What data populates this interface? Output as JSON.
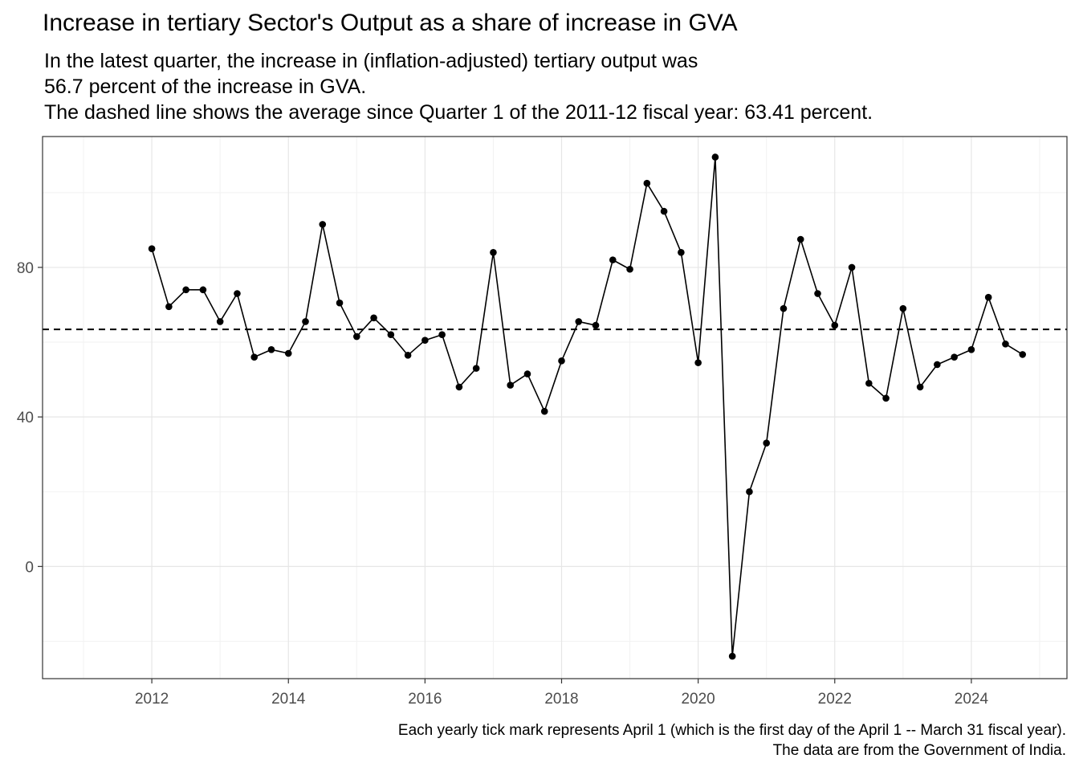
{
  "chart_data": {
    "type": "line",
    "title": "Increase in tertiary Sector's Output as a share of increase in GVA",
    "subtitle": "In the latest quarter, the increase in (inflation-adjusted) tertiary output was\n 56.7 percent of the increase in GVA.\nThe dashed line shows the average since Quarter 1 of the 2011-12 fiscal year: 63.41 percent.",
    "caption": "Each yearly tick mark represents April 1 (which is the first day of the April 1 -- March 31 fiscal year).\nThe data are from the Government of India.",
    "xlabel": "",
    "ylabel": "",
    "xlim": [
      2010.4,
      2025.4
    ],
    "ylim": [
      -30,
      115
    ],
    "x_ticks": [
      2012,
      2014,
      2016,
      2018,
      2020,
      2022,
      2024
    ],
    "y_ticks": [
      0,
      40,
      80
    ],
    "grid": true,
    "reference_line": {
      "value": 63.41,
      "style": "dashed"
    },
    "series": [
      {
        "points": [
          {
            "x": 2012.0,
            "y": 85.0
          },
          {
            "x": 2012.25,
            "y": 69.5
          },
          {
            "x": 2012.5,
            "y": 74.0
          },
          {
            "x": 2012.75,
            "y": 74.0
          },
          {
            "x": 2013.0,
            "y": 65.5
          },
          {
            "x": 2013.25,
            "y": 73.0
          },
          {
            "x": 2013.5,
            "y": 56.0
          },
          {
            "x": 2013.75,
            "y": 58.0
          },
          {
            "x": 2014.0,
            "y": 57.0
          },
          {
            "x": 2014.25,
            "y": 65.5
          },
          {
            "x": 2014.5,
            "y": 91.5
          },
          {
            "x": 2014.75,
            "y": 70.5
          },
          {
            "x": 2015.0,
            "y": 61.5
          },
          {
            "x": 2015.25,
            "y": 66.5
          },
          {
            "x": 2015.5,
            "y": 62.0
          },
          {
            "x": 2015.75,
            "y": 56.5
          },
          {
            "x": 2016.0,
            "y": 60.5
          },
          {
            "x": 2016.25,
            "y": 62.0
          },
          {
            "x": 2016.5,
            "y": 48.0
          },
          {
            "x": 2016.75,
            "y": 53.0
          },
          {
            "x": 2017.0,
            "y": 84.0
          },
          {
            "x": 2017.25,
            "y": 48.5
          },
          {
            "x": 2017.5,
            "y": 51.5
          },
          {
            "x": 2017.75,
            "y": 41.5
          },
          {
            "x": 2018.0,
            "y": 55.0
          },
          {
            "x": 2018.25,
            "y": 65.5
          },
          {
            "x": 2018.5,
            "y": 64.5
          },
          {
            "x": 2018.75,
            "y": 82.0
          },
          {
            "x": 2019.0,
            "y": 79.5
          },
          {
            "x": 2019.25,
            "y": 102.5
          },
          {
            "x": 2019.5,
            "y": 95.0
          },
          {
            "x": 2019.75,
            "y": 84.0
          },
          {
            "x": 2020.0,
            "y": 54.5
          },
          {
            "x": 2020.25,
            "y": 109.5
          },
          {
            "x": 2020.5,
            "y": -24.0
          },
          {
            "x": 2020.75,
            "y": 20.0
          },
          {
            "x": 2021.0,
            "y": 33.0
          },
          {
            "x": 2021.25,
            "y": 69.0
          },
          {
            "x": 2021.5,
            "y": 87.5
          },
          {
            "x": 2021.75,
            "y": 73.0
          },
          {
            "x": 2022.0,
            "y": 64.5
          },
          {
            "x": 2022.25,
            "y": 80.0
          },
          {
            "x": 2022.5,
            "y": 49.0
          },
          {
            "x": 2022.75,
            "y": 45.0
          },
          {
            "x": 2023.0,
            "y": 69.0
          },
          {
            "x": 2023.25,
            "y": 48.0
          },
          {
            "x": 2023.5,
            "y": 54.0
          },
          {
            "x": 2023.75,
            "y": 56.0
          },
          {
            "x": 2024.0,
            "y": 58.0
          },
          {
            "x": 2024.25,
            "y": 72.0
          },
          {
            "x": 2024.5,
            "y": 59.5
          },
          {
            "x": 2024.75,
            "y": 56.7
          }
        ]
      }
    ]
  }
}
